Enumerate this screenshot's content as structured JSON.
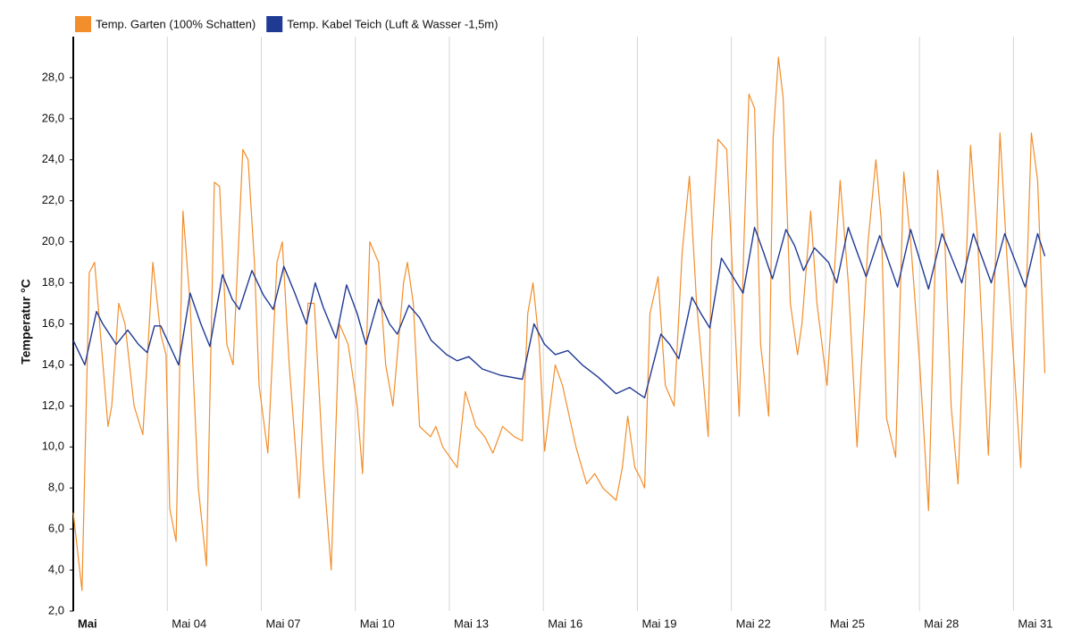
{
  "chart_data": {
    "type": "line",
    "y_label": "Temperatur °C",
    "xlim": [
      1,
      32.3
    ],
    "xticks": [
      {
        "value": 1,
        "label": "Mai"
      },
      {
        "value": 4,
        "label": "Mai 04"
      },
      {
        "value": 7,
        "label": "Mai 07"
      },
      {
        "value": 10,
        "label": "Mai 10"
      },
      {
        "value": 13,
        "label": "Mai 13"
      },
      {
        "value": 16,
        "label": "Mai 16"
      },
      {
        "value": 19,
        "label": "Mai 19"
      },
      {
        "value": 22,
        "label": "Mai 22"
      },
      {
        "value": 25,
        "label": "Mai 25"
      },
      {
        "value": 28,
        "label": "Mai 28"
      },
      {
        "value": 31,
        "label": "Mai 31"
      }
    ],
    "ylim": [
      2,
      30
    ],
    "yticks": [
      {
        "value": 2,
        "label": "2,0"
      },
      {
        "value": 4,
        "label": "4,0"
      },
      {
        "value": 6,
        "label": "6,0"
      },
      {
        "value": 8,
        "label": "8,0"
      },
      {
        "value": 10,
        "label": "10,0"
      },
      {
        "value": 12,
        "label": "12,0"
      },
      {
        "value": 14,
        "label": "14,0"
      },
      {
        "value": 16,
        "label": "16,0"
      },
      {
        "value": 18,
        "label": "18,0"
      },
      {
        "value": 20,
        "label": "20,0"
      },
      {
        "value": 22,
        "label": "22,0"
      },
      {
        "value": 24,
        "label": "24,0"
      },
      {
        "value": 26,
        "label": "26,0"
      },
      {
        "value": 28,
        "label": "28,0"
      }
    ],
    "grid": "x",
    "legend": "top-left",
    "series": [
      {
        "name": "Temp. Garten (100% Schatten)",
        "color": "#f28e2b",
        "x": [
          1,
          1.28,
          1.51,
          1.68,
          2.11,
          2.23,
          2.45,
          2.65,
          2.94,
          3.22,
          3.54,
          3.79,
          3.96,
          4.08,
          4.28,
          4.5,
          4.73,
          4.99,
          5.25,
          5.5,
          5.67,
          5.9,
          6.1,
          6.41,
          6.58,
          6.78,
          6.93,
          7.21,
          7.5,
          7.67,
          7.89,
          8.21,
          8.49,
          8.69,
          8.98,
          9.23,
          9.49,
          9.77,
          10.06,
          10.23,
          10.46,
          10.74,
          10.97,
          11.2,
          11.54,
          11.66,
          11.85,
          12.05,
          12.4,
          12.57,
          12.79,
          13.25,
          13.51,
          13.85,
          14.13,
          14.39,
          14.7,
          15.07,
          15.33,
          15.5,
          15.67,
          15.87,
          16.04,
          16.38,
          16.61,
          17.04,
          17.38,
          17.64,
          17.9,
          18.32,
          18.52,
          18.69,
          18.92,
          19.09,
          19.23,
          19.4,
          19.66,
          19.89,
          20.17,
          20.43,
          20.66,
          20.89,
          21.26,
          21.37,
          21.57,
          21.85,
          22.08,
          22.25,
          22.4,
          22.56,
          22.74,
          22.93,
          23.19,
          23.33,
          23.5,
          23.65,
          23.88,
          24.11,
          24.25,
          24.53,
          24.73,
          25.05,
          25.47,
          25.73,
          26.01,
          26.36,
          26.61,
          26.78,
          26.95,
          27.24,
          27.5,
          27.72,
          28.01,
          28.29,
          28.58,
          28.81,
          29.01,
          29.23,
          29.63,
          29.86,
          30.2,
          30.57,
          30.8,
          31.23,
          31.57,
          31.77,
          32.0
        ],
        "values": [
          6.8,
          3.0,
          18.5,
          19,
          11,
          12,
          17,
          16,
          12,
          10.6,
          19,
          15.5,
          14.5,
          7,
          5.4,
          21.5,
          17,
          8,
          4.2,
          22.9,
          22.7,
          15,
          14,
          24.5,
          24,
          19,
          13,
          9.7,
          19,
          20,
          14,
          7.5,
          17,
          17,
          9,
          4,
          16,
          15,
          12,
          8.7,
          20,
          19,
          14,
          12,
          18,
          19,
          17,
          11,
          10.5,
          11,
          10,
          9,
          12.7,
          11,
          10.5,
          9.7,
          11,
          10.5,
          10.3,
          16.5,
          18,
          15,
          9.8,
          14,
          13,
          10,
          8.2,
          8.7,
          8,
          7.4,
          9,
          11.5,
          9,
          8.5,
          8,
          16.5,
          18.3,
          13,
          12,
          19.5,
          23.2,
          17,
          10.5,
          20,
          25,
          24.5,
          17,
          11.5,
          20,
          27.2,
          26.5,
          15,
          11.5,
          25,
          29,
          27,
          17,
          14.5,
          16,
          21.5,
          17,
          13,
          23,
          18,
          10,
          20,
          24,
          21,
          11.4,
          9.5,
          23.4,
          20,
          14,
          6.9,
          23.5,
          20,
          12,
          8.2,
          24.7,
          20,
          9.6,
          25.3,
          19,
          9,
          25.3,
          23,
          13.6
        ]
      },
      {
        "name": "Temp. Kabel Teich (Luft & Wasser -1,5m)",
        "color": "#1f3a93",
        "x": [
          1,
          1.37,
          1.74,
          1.94,
          2.37,
          2.74,
          3.08,
          3.36,
          3.59,
          3.79,
          4.36,
          4.73,
          5.07,
          5.36,
          5.76,
          6.07,
          6.3,
          6.7,
          7.07,
          7.38,
          7.72,
          8.07,
          8.44,
          8.72,
          8.98,
          9.38,
          9.72,
          10.06,
          10.34,
          10.74,
          11.09,
          11.34,
          11.71,
          12.05,
          12.42,
          12.91,
          13.25,
          13.62,
          14.05,
          14.62,
          15.33,
          15.7,
          16.04,
          16.38,
          16.78,
          17.24,
          17.75,
          18.32,
          18.75,
          19.23,
          19.75,
          20.03,
          20.32,
          20.74,
          21.03,
          21.31,
          21.68,
          22.37,
          22.74,
          23.02,
          23.31,
          23.74,
          24.02,
          24.3,
          24.65,
          25.1,
          25.36,
          25.73,
          26.01,
          26.3,
          26.73,
          27.3,
          27.72,
          28.29,
          28.72,
          29.35,
          29.72,
          30.29,
          30.72,
          31.37,
          31.77,
          32.0
        ],
        "values": [
          15.2,
          14,
          16.6,
          16,
          15,
          15.7,
          15,
          14.6,
          15.9,
          15.9,
          14,
          17.5,
          16,
          14.9,
          18.4,
          17.2,
          16.7,
          18.6,
          17.4,
          16.7,
          18.8,
          17.5,
          16,
          18,
          16.8,
          15.3,
          17.9,
          16.5,
          15,
          17.2,
          16,
          15.5,
          16.9,
          16.3,
          15.2,
          14.5,
          14.2,
          14.4,
          13.8,
          13.5,
          13.3,
          16,
          15,
          14.5,
          14.7,
          14,
          13.4,
          12.6,
          12.9,
          12.4,
          15.5,
          15,
          14.3,
          17.3,
          16.5,
          15.8,
          19.2,
          17.5,
          20.7,
          19.5,
          18.2,
          20.6,
          19.8,
          18.6,
          19.7,
          19,
          18,
          20.7,
          19.5,
          18.3,
          20.3,
          17.8,
          20.6,
          17.7,
          20.4,
          18,
          20.4,
          18,
          20.4,
          17.8,
          20.4,
          19.3
        ]
      }
    ]
  }
}
